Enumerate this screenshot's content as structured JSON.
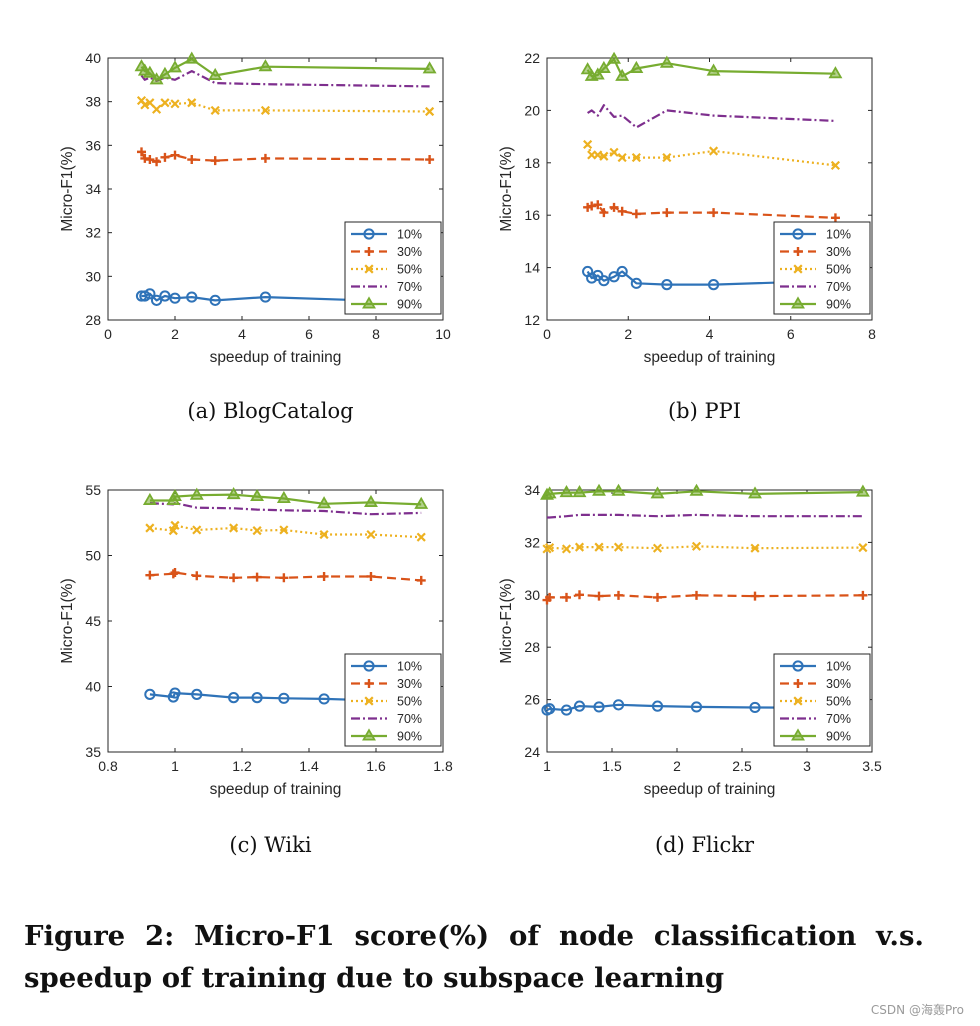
{
  "caption": "Figure 2: Micro-F1 score(%) of node classification v.s. speedup of training due to subspace learning",
  "watermark": "CSDN @海轰Pro",
  "colors": {
    "10%": "#2f73b8",
    "30%": "#d95319",
    "50%": "#edb120",
    "70%": "#7e2f8e",
    "90%": "#77ac30"
  },
  "chart_data": [
    {
      "type": "line",
      "title": "BlogCatalog",
      "subcaption": "(a)  BlogCatalog",
      "xlabel": "speedup of training",
      "ylabel": "Micro-F1(%)",
      "xlim": [
        0,
        10
      ],
      "ylim": [
        28,
        40
      ],
      "xticks": [
        0,
        2,
        4,
        6,
        8,
        10
      ],
      "yticks": [
        28,
        30,
        32,
        34,
        36,
        38,
        40
      ],
      "xtick_labels": [
        "0",
        "2",
        "4",
        "6",
        "8",
        "10"
      ],
      "ytick_labels": [
        "28",
        "30",
        "32",
        "34",
        "36",
        "38",
        "40"
      ],
      "legend_position": "lower-right",
      "series": [
        {
          "name": "10%",
          "x": [
            1.0,
            1.1,
            1.25,
            1.45,
            1.7,
            2.0,
            2.5,
            3.2,
            4.7,
            9.6
          ],
          "y": [
            29.1,
            29.1,
            29.2,
            28.9,
            29.1,
            29.0,
            29.05,
            28.9,
            29.05,
            28.8
          ]
        },
        {
          "name": "30%",
          "x": [
            1.0,
            1.1,
            1.25,
            1.45,
            1.7,
            2.0,
            2.5,
            3.2,
            4.7,
            9.6
          ],
          "y": [
            35.7,
            35.4,
            35.35,
            35.25,
            35.45,
            35.55,
            35.35,
            35.3,
            35.4,
            35.35
          ]
        },
        {
          "name": "50%",
          "x": [
            1.0,
            1.1,
            1.25,
            1.45,
            1.7,
            2.0,
            2.5,
            3.2,
            4.7,
            9.6
          ],
          "y": [
            38.05,
            37.85,
            37.95,
            37.65,
            37.95,
            37.9,
            37.95,
            37.6,
            37.6,
            37.55
          ]
        },
        {
          "name": "70%",
          "x": [
            1.0,
            1.1,
            1.25,
            1.45,
            1.7,
            2.0,
            2.5,
            3.2,
            4.7,
            9.6
          ],
          "y": [
            39.2,
            39.0,
            39.1,
            38.95,
            39.1,
            39.0,
            39.4,
            38.85,
            38.8,
            38.7
          ]
        },
        {
          "name": "90%",
          "x": [
            1.0,
            1.1,
            1.25,
            1.45,
            1.7,
            2.0,
            2.5,
            3.2,
            4.7,
            9.6
          ],
          "y": [
            39.6,
            39.4,
            39.3,
            39.0,
            39.25,
            39.55,
            39.95,
            39.2,
            39.6,
            39.5
          ]
        }
      ]
    },
    {
      "type": "line",
      "title": "PPI",
      "subcaption": "(b)  PPI",
      "xlabel": "speedup of training",
      "ylabel": "Micro-F1(%)",
      "xlim": [
        0,
        8
      ],
      "ylim": [
        12,
        22
      ],
      "xticks": [
        0,
        2,
        4,
        6,
        8
      ],
      "yticks": [
        12,
        14,
        16,
        18,
        20,
        22
      ],
      "xtick_labels": [
        "0",
        "2",
        "4",
        "6",
        "8"
      ],
      "ytick_labels": [
        "12",
        "14",
        "16",
        "18",
        "20",
        "22"
      ],
      "legend_position": "lower-right",
      "series": [
        {
          "name": "10%",
          "x": [
            1.0,
            1.1,
            1.25,
            1.4,
            1.65,
            1.85,
            2.2,
            2.95,
            4.1,
            7.1
          ],
          "y": [
            13.85,
            13.6,
            13.7,
            13.5,
            13.65,
            13.85,
            13.4,
            13.35,
            13.35,
            13.5
          ]
        },
        {
          "name": "30%",
          "x": [
            1.0,
            1.1,
            1.25,
            1.4,
            1.65,
            1.85,
            2.2,
            2.95,
            4.1,
            7.1
          ],
          "y": [
            16.3,
            16.35,
            16.4,
            16.1,
            16.3,
            16.15,
            16.05,
            16.1,
            16.1,
            15.9
          ]
        },
        {
          "name": "50%",
          "x": [
            1.0,
            1.1,
            1.25,
            1.4,
            1.65,
            1.85,
            2.2,
            2.95,
            4.1,
            7.1
          ],
          "y": [
            18.7,
            18.3,
            18.3,
            18.25,
            18.4,
            18.2,
            18.2,
            18.2,
            18.45,
            17.9
          ]
        },
        {
          "name": "70%",
          "x": [
            1.0,
            1.1,
            1.25,
            1.4,
            1.65,
            1.85,
            2.2,
            2.95,
            4.1,
            7.1
          ],
          "y": [
            19.9,
            20.0,
            19.8,
            20.2,
            19.75,
            19.8,
            19.35,
            20.0,
            19.8,
            19.6
          ]
        },
        {
          "name": "90%",
          "x": [
            1.0,
            1.1,
            1.25,
            1.4,
            1.65,
            1.85,
            2.2,
            2.95,
            4.1,
            7.1
          ],
          "y": [
            21.55,
            21.3,
            21.35,
            21.6,
            21.95,
            21.3,
            21.6,
            21.8,
            21.5,
            21.4
          ]
        }
      ]
    },
    {
      "type": "line",
      "title": "Wiki",
      "subcaption": "(c)  Wiki",
      "xlabel": "speedup of training",
      "ylabel": "Micro-F1(%)",
      "xlim": [
        0.8,
        1.8
      ],
      "ylim": [
        35,
        55
      ],
      "xticks": [
        0.8,
        1.0,
        1.2,
        1.4,
        1.6,
        1.8
      ],
      "yticks": [
        35,
        40,
        45,
        50,
        55
      ],
      "xtick_labels": [
        "0.8",
        "1",
        "1.2",
        "1.4",
        "1.6",
        "1.8"
      ],
      "ytick_labels": [
        "35",
        "40",
        "45",
        "50",
        "55"
      ],
      "legend_position": "lower-right",
      "series": [
        {
          "name": "10%",
          "x": [
            0.925,
            0.995,
            1.0,
            1.065,
            1.175,
            1.245,
            1.325,
            1.445,
            1.585,
            1.735
          ],
          "y": [
            39.4,
            39.2,
            39.5,
            39.4,
            39.15,
            39.15,
            39.1,
            39.05,
            38.95,
            38.9
          ]
        },
        {
          "name": "30%",
          "x": [
            0.925,
            0.995,
            1.0,
            1.065,
            1.175,
            1.245,
            1.325,
            1.445,
            1.585,
            1.735
          ],
          "y": [
            48.5,
            48.6,
            48.7,
            48.45,
            48.3,
            48.35,
            48.3,
            48.4,
            48.4,
            48.1
          ]
        },
        {
          "name": "50%",
          "x": [
            0.925,
            0.995,
            1.0,
            1.065,
            1.175,
            1.245,
            1.325,
            1.445,
            1.585,
            1.735
          ],
          "y": [
            52.1,
            51.9,
            52.3,
            51.95,
            52.1,
            51.9,
            51.95,
            51.6,
            51.6,
            51.4
          ]
        },
        {
          "name": "70%",
          "x": [
            0.925,
            0.995,
            1.0,
            1.065,
            1.175,
            1.245,
            1.325,
            1.445,
            1.585,
            1.735
          ],
          "y": [
            54.0,
            53.9,
            54.0,
            53.65,
            53.6,
            53.5,
            53.45,
            53.4,
            53.15,
            53.25
          ]
        },
        {
          "name": "90%",
          "x": [
            0.925,
            0.995,
            1.0,
            1.065,
            1.175,
            1.245,
            1.325,
            1.445,
            1.585,
            1.735
          ],
          "y": [
            54.2,
            54.2,
            54.5,
            54.6,
            54.65,
            54.5,
            54.35,
            53.95,
            54.05,
            53.9
          ]
        }
      ]
    },
    {
      "type": "line",
      "title": "Flickr",
      "subcaption": "(d)  Flickr",
      "xlabel": "speedup of training",
      "ylabel": "Micro-F1(%)",
      "xlim": [
        1,
        3.5
      ],
      "ylim": [
        24,
        34
      ],
      "xticks": [
        1,
        1.5,
        2,
        2.5,
        3,
        3.5
      ],
      "yticks": [
        24,
        26,
        28,
        30,
        32,
        34
      ],
      "xtick_labels": [
        "1",
        "1.5",
        "2",
        "2.5",
        "3",
        "3.5"
      ],
      "ytick_labels": [
        "24",
        "26",
        "28",
        "30",
        "32",
        "34"
      ],
      "legend_position": "lower-right",
      "series": [
        {
          "name": "10%",
          "x": [
            1.0,
            1.02,
            1.15,
            1.25,
            1.4,
            1.55,
            1.85,
            2.15,
            2.6,
            3.43
          ],
          "y": [
            25.6,
            25.65,
            25.6,
            25.75,
            25.72,
            25.8,
            25.75,
            25.72,
            25.7,
            25.68
          ]
        },
        {
          "name": "30%",
          "x": [
            1.0,
            1.02,
            1.15,
            1.25,
            1.4,
            1.55,
            1.85,
            2.15,
            2.6,
            3.43
          ],
          "y": [
            29.8,
            29.9,
            29.9,
            30.0,
            29.95,
            29.98,
            29.9,
            29.98,
            29.95,
            29.98
          ]
        },
        {
          "name": "50%",
          "x": [
            1.0,
            1.02,
            1.15,
            1.25,
            1.4,
            1.55,
            1.85,
            2.15,
            2.6,
            3.43
          ],
          "y": [
            31.75,
            31.8,
            31.75,
            31.82,
            31.82,
            31.82,
            31.78,
            31.85,
            31.78,
            31.8
          ]
        },
        {
          "name": "70%",
          "x": [
            1.0,
            1.02,
            1.15,
            1.25,
            1.4,
            1.55,
            1.85,
            2.15,
            2.6,
            3.43
          ],
          "y": [
            32.95,
            32.95,
            33.0,
            33.05,
            33.05,
            33.05,
            33.0,
            33.05,
            33.0,
            33.0
          ]
        },
        {
          "name": "90%",
          "x": [
            1.0,
            1.02,
            1.15,
            1.25,
            1.4,
            1.55,
            1.85,
            2.15,
            2.6,
            3.43
          ],
          "y": [
            33.8,
            33.85,
            33.9,
            33.9,
            33.95,
            33.95,
            33.85,
            33.95,
            33.85,
            33.92
          ]
        }
      ]
    }
  ]
}
